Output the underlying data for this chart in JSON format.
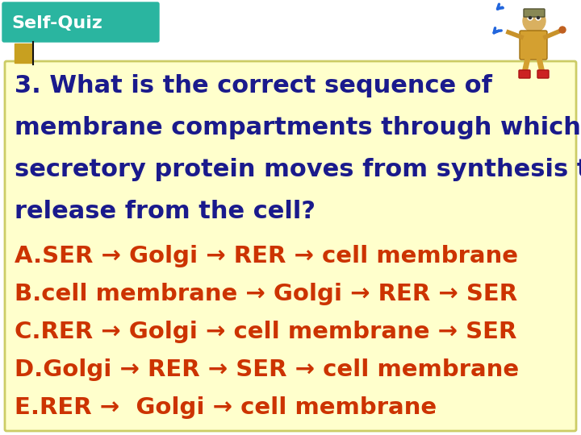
{
  "background_color": "#ffffff",
  "header_bg": "#2ab5a0",
  "header_text": "Self-Quiz",
  "header_text_color": "#ffffff",
  "header_font_size": 16,
  "small_rect_color": "#c8a020",
  "question_box_bg": "#ffffcc",
  "question_box_border": "#cccc66",
  "question_color": "#1a1a8c",
  "question_lines": [
    "3. What is the correct sequence of",
    "membrane compartments through which a",
    "secretory protein moves from synthesis to",
    "release from the cell?"
  ],
  "question_font_size": 22,
  "answer_color": "#cc3300",
  "answer_font_size": 21,
  "answers": [
    "A.SER → Golgi → RER → cell membrane",
    "B.cell membrane → Golgi → RER → SER",
    "C.RER → Golgi → cell membrane → SER",
    "D.Golgi → RER → SER → cell membrane",
    "E.RER →  Golgi → cell membrane"
  ]
}
